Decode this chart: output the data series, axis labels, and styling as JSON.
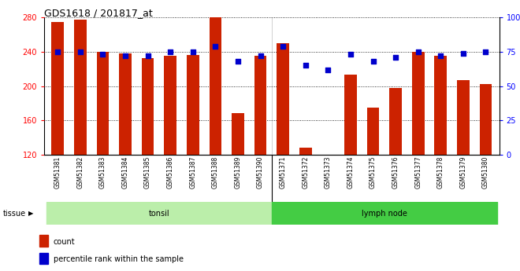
{
  "title": "GDS1618 / 201817_at",
  "samples": [
    "GSM51381",
    "GSM51382",
    "GSM51383",
    "GSM51384",
    "GSM51385",
    "GSM51386",
    "GSM51387",
    "GSM51388",
    "GSM51389",
    "GSM51390",
    "GSM51371",
    "GSM51372",
    "GSM51373",
    "GSM51374",
    "GSM51375",
    "GSM51376",
    "GSM51377",
    "GSM51378",
    "GSM51379",
    "GSM51380"
  ],
  "counts": [
    275,
    278,
    240,
    238,
    233,
    235,
    236,
    280,
    168,
    235,
    250,
    128,
    120,
    213,
    175,
    198,
    240,
    235,
    207,
    202
  ],
  "percentiles": [
    75,
    75,
    73,
    72,
    72,
    75,
    75,
    79,
    68,
    72,
    79,
    65,
    62,
    73,
    68,
    71,
    75,
    72,
    74,
    75
  ],
  "tonsil_count": 10,
  "lymph_count": 10,
  "ylim_left": [
    120,
    280
  ],
  "ylim_right": [
    0,
    100
  ],
  "yticks_left": [
    120,
    160,
    200,
    240,
    280
  ],
  "yticks_right": [
    0,
    25,
    50,
    75,
    100
  ],
  "bar_color": "#cc2200",
  "dot_color": "#0000cc",
  "tonsil_color": "#bbeeaa",
  "lymph_color": "#44cc44",
  "xtick_bg_color": "#d8d8d8",
  "bar_baseline": 120,
  "legend_count_label": "count",
  "legend_percentile_label": "percentile rank within the sample",
  "tissue_label": "tissue",
  "tonsil_label": "tonsil",
  "lymph_label": "lymph node",
  "title_fontsize": 9,
  "tick_fontsize": 7,
  "label_fontsize": 7
}
